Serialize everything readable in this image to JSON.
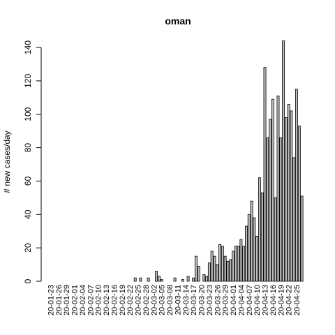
{
  "chart_data": {
    "type": "bar",
    "title": "oman",
    "xlabel": "",
    "ylabel": "# new cases/day",
    "ylim": [
      0,
      145
    ],
    "yticks": [
      0,
      20,
      40,
      60,
      80,
      100,
      120,
      140
    ],
    "categories": [
      "20-01-23",
      "20-01-24",
      "20-01-25",
      "20-01-26",
      "20-01-27",
      "20-01-28",
      "20-01-29",
      "20-01-30",
      "20-01-31",
      "20-02-01",
      "20-02-02",
      "20-02-03",
      "20-02-04",
      "20-02-05",
      "20-02-06",
      "20-02-07",
      "20-02-08",
      "20-02-09",
      "20-02-10",
      "20-02-11",
      "20-02-12",
      "20-02-13",
      "20-02-14",
      "20-02-15",
      "20-02-16",
      "20-02-17",
      "20-02-18",
      "20-02-19",
      "20-02-20",
      "20-02-21",
      "20-02-22",
      "20-02-23",
      "20-02-24",
      "20-02-25",
      "20-02-26",
      "20-02-27",
      "20-02-28",
      "20-02-29",
      "20-03-01",
      "20-03-02",
      "20-03-03",
      "20-03-04",
      "20-03-05",
      "20-03-06",
      "20-03-07",
      "20-03-08",
      "20-03-09",
      "20-03-10",
      "20-03-11",
      "20-03-12",
      "20-03-13",
      "20-03-14",
      "20-03-15",
      "20-03-16",
      "20-03-17",
      "20-03-18",
      "20-03-19",
      "20-03-20",
      "20-03-21",
      "20-03-22",
      "20-03-23",
      "20-03-24",
      "20-03-25",
      "20-03-26",
      "20-03-27",
      "20-03-28",
      "20-03-29",
      "20-03-30",
      "20-03-31",
      "20-04-01",
      "20-04-02",
      "20-04-03",
      "20-04-04",
      "20-04-05",
      "20-04-06",
      "20-04-07",
      "20-04-08",
      "20-04-09",
      "20-04-10",
      "20-04-11",
      "20-04-12",
      "20-04-13",
      "20-04-14",
      "20-04-15",
      "20-04-16",
      "20-04-17",
      "20-04-18",
      "20-04-19",
      "20-04-20",
      "20-04-21",
      "20-04-22",
      "20-04-23",
      "20-04-24",
      "20-04-25",
      "20-04-26",
      "20-04-27"
    ],
    "labeled_categories": [
      "20-01-23",
      "20-01-26",
      "20-01-29",
      "20-02-01",
      "20-02-04",
      "20-02-07",
      "20-02-10",
      "20-02-13",
      "20-02-16",
      "20-02-19",
      "20-02-22",
      "20-02-25",
      "20-02-28",
      "20-03-02",
      "20-03-05",
      "20-03-08",
      "20-03-11",
      "20-03-14",
      "20-03-17",
      "20-03-20",
      "20-03-23",
      "20-03-26",
      "20-03-29",
      "20-04-01",
      "20-04-04",
      "20-04-07",
      "20-04-10",
      "20-04-13",
      "20-04-16",
      "20-04-19",
      "20-04-22",
      "20-04-25"
    ],
    "values": [
      0,
      0,
      0,
      0,
      0,
      0,
      0,
      0,
      0,
      0,
      0,
      0,
      0,
      0,
      0,
      0,
      0,
      0,
      0,
      0,
      0,
      0,
      0,
      0,
      0,
      0,
      0,
      0,
      0,
      0,
      0,
      0,
      2,
      0,
      2,
      0,
      0,
      2,
      0,
      0,
      6,
      3,
      1,
      0,
      0,
      0,
      0,
      2,
      0,
      0,
      1,
      0,
      3,
      0,
      2,
      15,
      9,
      0,
      4,
      3,
      11,
      18,
      15,
      10,
      22,
      21,
      15,
      12,
      13,
      18,
      21,
      21,
      25,
      21,
      33,
      40,
      48,
      38,
      27,
      62,
      53,
      128,
      86,
      97,
      109,
      50,
      111,
      86,
      144,
      98,
      106,
      102,
      74,
      115,
      93,
      51
    ],
    "grid": false,
    "legend": "none"
  }
}
